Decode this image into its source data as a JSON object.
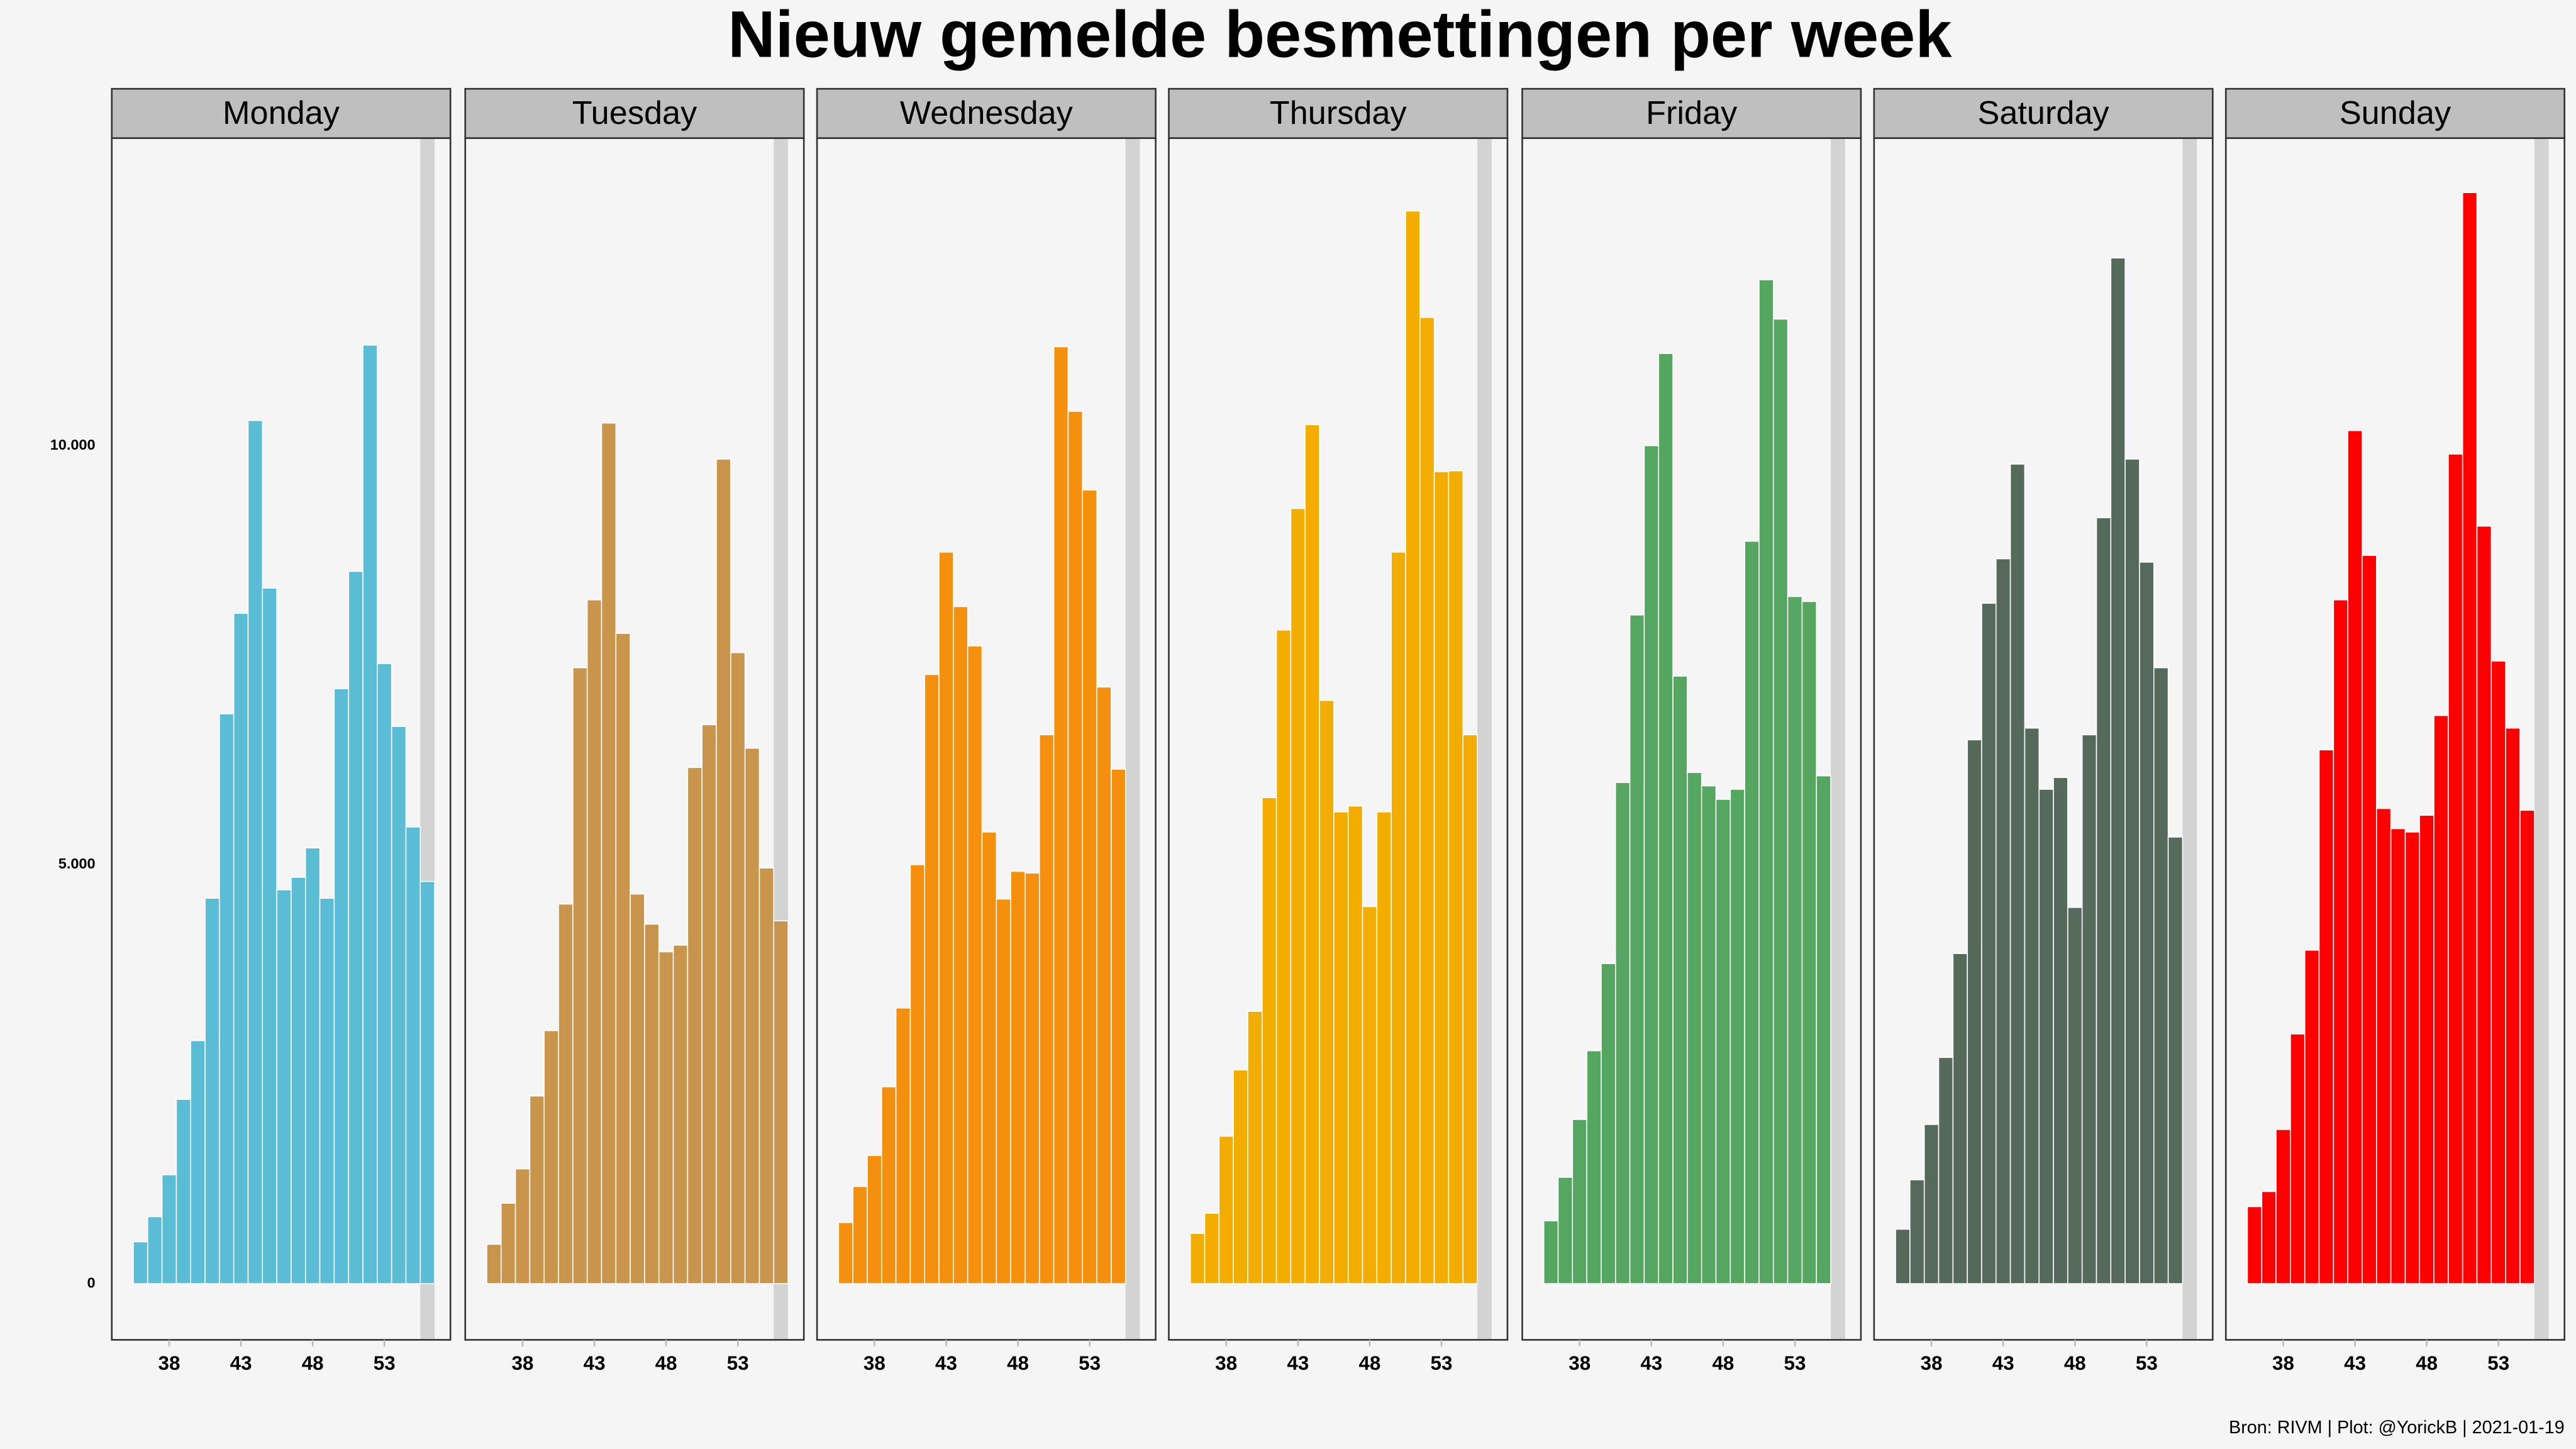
{
  "chart_data": {
    "type": "bar",
    "title": "Nieuw gemelde besmettingen per week",
    "caption": "Bron: RIVM | Plot: @YorickB |  2021-01-19",
    "xlim": [
      34,
      57.6
    ],
    "xticks": [
      38,
      43,
      48,
      53
    ],
    "ylim": [
      -670,
      13670
    ],
    "yticks": [
      0,
      {
        "value": 5000,
        "label": "5.000"
      },
      {
        "value": 10000,
        "label": "10.000"
      }
    ],
    "shaded_x": 56,
    "panels": [
      {
        "name": "Monday",
        "color": "#5bbcd6",
        "x": [
          36,
          37,
          38,
          39,
          40,
          41,
          42,
          43,
          44,
          45,
          46,
          47,
          48,
          49,
          50,
          51,
          52,
          53,
          54,
          55,
          56
        ],
        "values": [
          500,
          800,
          1300,
          2200,
          2900,
          4600,
          6800,
          8000,
          10300,
          8300,
          4700,
          4850,
          5200,
          4600,
          7100,
          8500,
          11200,
          7400,
          6650,
          5450,
          4800
        ]
      },
      {
        "name": "Tuesday",
        "color": "#c9954c",
        "x": [
          36,
          37,
          38,
          39,
          40,
          41,
          42,
          43,
          44,
          45,
          46,
          47,
          48,
          49,
          50,
          51,
          52,
          53,
          54,
          55,
          56
        ],
        "values": [
          470,
          960,
          1370,
          2240,
          3020,
          4530,
          7350,
          8160,
          10270,
          7760,
          4650,
          4290,
          3960,
          4040,
          6160,
          6670,
          9840,
          7530,
          6390,
          4960,
          4330
        ]
      },
      {
        "name": "Wednesday",
        "color": "#f4900e",
        "x": [
          36,
          37,
          38,
          39,
          40,
          41,
          42,
          43,
          44,
          45,
          46,
          47,
          48,
          49,
          50,
          51,
          52,
          53,
          54,
          55
        ],
        "values": [
          730,
          1160,
          1530,
          2350,
          3290,
          5000,
          7270,
          8730,
          8080,
          7610,
          5390,
          4590,
          4920,
          4900,
          6550,
          11180,
          10410,
          9470,
          7120,
          6140
        ]
      },
      {
        "name": "Thursday",
        "color": "#f2ad00",
        "x": [
          36,
          37,
          38,
          39,
          40,
          41,
          42,
          43,
          44,
          45,
          46,
          47,
          48,
          49,
          50,
          51,
          52,
          53,
          54,
          55
        ],
        "values": [
          600,
          840,
          1760,
          2550,
          3250,
          5800,
          7800,
          9250,
          10250,
          6960,
          5630,
          5700,
          4500,
          5630,
          8730,
          12800,
          11530,
          9690,
          9700,
          6550
        ]
      },
      {
        "name": "Friday",
        "color": "#55a660",
        "x": [
          36,
          37,
          38,
          39,
          40,
          41,
          42,
          43,
          44,
          45,
          46,
          47,
          48,
          49,
          50,
          51,
          52,
          53,
          54,
          55
        ],
        "values": [
          750,
          1270,
          1960,
          2780,
          3820,
          5980,
          7980,
          10000,
          11100,
          7250,
          6100,
          5940,
          5780,
          5900,
          8860,
          11980,
          11510,
          8200,
          8140,
          6060
        ]
      },
      {
        "name": "Saturday",
        "color": "#556a5b",
        "x": [
          36,
          37,
          38,
          39,
          40,
          41,
          42,
          43,
          44,
          45,
          46,
          47,
          48,
          49,
          50,
          51,
          52,
          53,
          54,
          55
        ],
        "values": [
          650,
          1240,
          1900,
          2700,
          3940,
          6490,
          8120,
          8650,
          9780,
          6630,
          5900,
          6040,
          4490,
          6550,
          9140,
          12240,
          9840,
          8610,
          7350,
          5330
        ]
      },
      {
        "name": "Sunday",
        "color": "#ff0000",
        "x": [
          36,
          37,
          38,
          39,
          40,
          41,
          42,
          43,
          44,
          45,
          46,
          47,
          48,
          49,
          50,
          51,
          52,
          53,
          54,
          55
        ],
        "values": [
          920,
          1100,
          1840,
          2980,
          3980,
          6370,
          8160,
          10180,
          8690,
          5670,
          5430,
          5390,
          5590,
          6780,
          9900,
          13020,
          9040,
          7430,
          6630,
          5650
        ]
      }
    ]
  }
}
